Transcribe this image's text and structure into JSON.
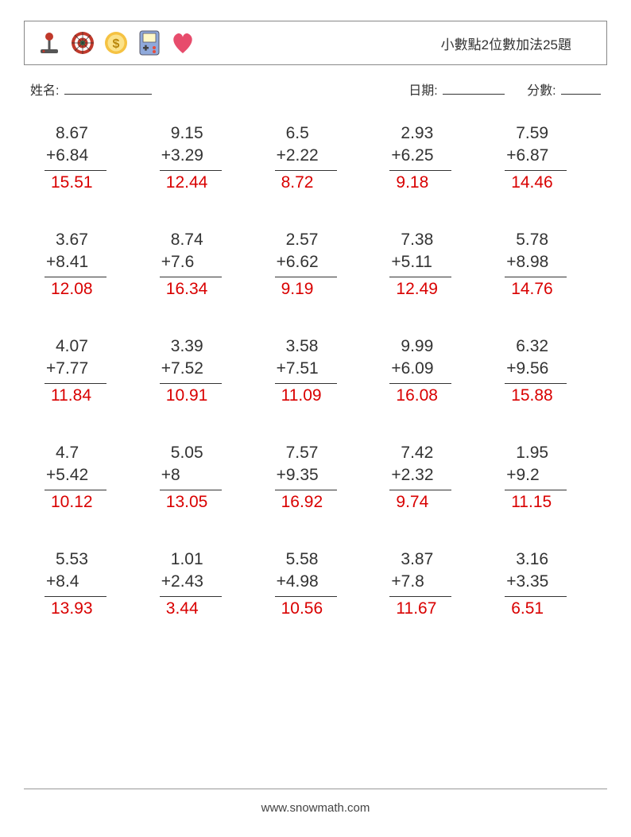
{
  "title": "小數點2位數加法25題",
  "meta": {
    "name_label": "姓名:",
    "date_label": "日期:",
    "score_label": "分數:"
  },
  "blank_widths": {
    "name": 110,
    "date": 78,
    "score": 50
  },
  "icon_colors": {
    "joystick_base": "#d9534f",
    "joystick_stick": "#555",
    "joystick_ball": "#c0392b",
    "dart_outer": "#c0392b",
    "dart_mid": "#fefefe",
    "dart_inner": "#2e8b57",
    "coin_outer": "#f5c242",
    "coin_inner": "#fbe28a",
    "coin_sym": "#b8860b",
    "game_body": "#8fa9db",
    "game_screen": "#fff8c6",
    "game_btn": "#e74c3c",
    "heart": "#e74c6c"
  },
  "style": {
    "problem_fontsize": 21,
    "answer_color": "#d90000",
    "text_color": "#333333",
    "background": "#ffffff",
    "rule_width": 78,
    "columns": 5,
    "rows": 5
  },
  "footer": "www.snowmath.com",
  "problems": [
    {
      "a": "8.67",
      "b": "6.84",
      "ans": "15.51"
    },
    {
      "a": "9.15",
      "b": "3.29",
      "ans": "12.44"
    },
    {
      "a": "6.5",
      "b": "2.22",
      "ans": "8.72"
    },
    {
      "a": "2.93",
      "b": "6.25",
      "ans": "9.18"
    },
    {
      "a": "7.59",
      "b": "6.87",
      "ans": "14.46"
    },
    {
      "a": "3.67",
      "b": "8.41",
      "ans": "12.08"
    },
    {
      "a": "8.74",
      "b": "7.6",
      "ans": "16.34"
    },
    {
      "a": "2.57",
      "b": "6.62",
      "ans": "9.19"
    },
    {
      "a": "7.38",
      "b": "5.11",
      "ans": "12.49"
    },
    {
      "a": "5.78",
      "b": "8.98",
      "ans": "14.76"
    },
    {
      "a": "4.07",
      "b": "7.77",
      "ans": "11.84"
    },
    {
      "a": "3.39",
      "b": "7.52",
      "ans": "10.91"
    },
    {
      "a": "3.58",
      "b": "7.51",
      "ans": "11.09"
    },
    {
      "a": "9.99",
      "b": "6.09",
      "ans": "16.08"
    },
    {
      "a": "6.32",
      "b": "9.56",
      "ans": "15.88"
    },
    {
      "a": "4.7",
      "b": "5.42",
      "ans": "10.12"
    },
    {
      "a": "5.05",
      "b": "8",
      "ans": "13.05"
    },
    {
      "a": "7.57",
      "b": "9.35",
      "ans": "16.92"
    },
    {
      "a": "7.42",
      "b": "2.32",
      "ans": "9.74"
    },
    {
      "a": "1.95",
      "b": "9.2",
      "ans": "11.15"
    },
    {
      "a": "5.53",
      "b": "8.4",
      "ans": "13.93"
    },
    {
      "a": "1.01",
      "b": "2.43",
      "ans": "3.44"
    },
    {
      "a": "5.58",
      "b": "4.98",
      "ans": "10.56"
    },
    {
      "a": "3.87",
      "b": "7.8",
      "ans": "11.67"
    },
    {
      "a": "3.16",
      "b": "3.35",
      "ans": "6.51"
    }
  ]
}
